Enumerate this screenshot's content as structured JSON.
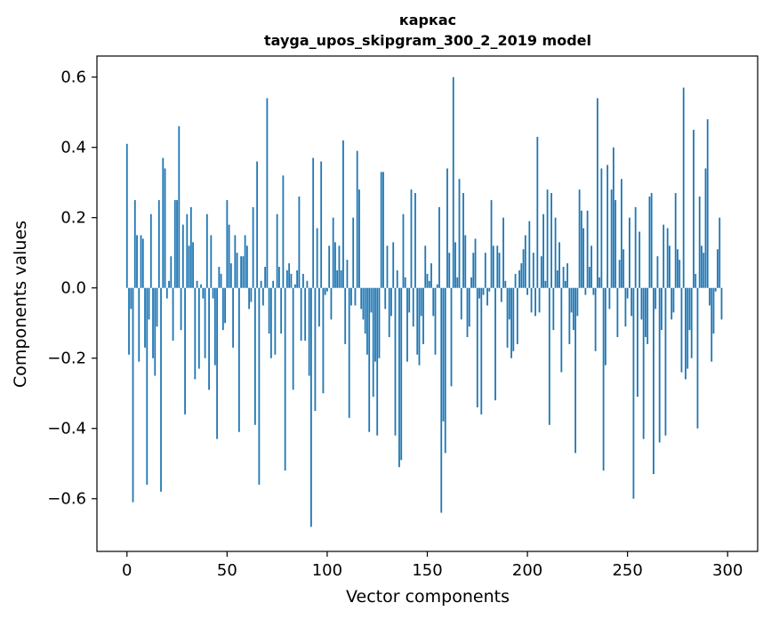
{
  "chart_data": {
    "type": "bar",
    "title_line1": "каркас",
    "title_line2": "tayga_upos_skipgram_300_2_2019 model",
    "xlabel": "Vector components",
    "ylabel": "Components values",
    "xlim": [
      -15,
      315
    ],
    "ylim": [
      -0.75,
      0.66
    ],
    "xticks": [
      0,
      50,
      100,
      150,
      200,
      250,
      300
    ],
    "xtick_labels": [
      "0",
      "50",
      "100",
      "150",
      "200",
      "250",
      "300"
    ],
    "yticks": [
      -0.6,
      -0.4,
      -0.2,
      0.0,
      0.2,
      0.4,
      0.6
    ],
    "ytick_labels": [
      "−0.6",
      "−0.4",
      "−0.2",
      "0.0",
      "0.2",
      "0.4",
      "0.6"
    ],
    "bar_color": "#1f77b4",
    "grid": false,
    "legend": "none",
    "values": [
      0.41,
      -0.19,
      -0.06,
      -0.61,
      0.25,
      0.15,
      -0.21,
      0.15,
      0.14,
      -0.17,
      -0.56,
      -0.09,
      0.21,
      -0.2,
      -0.25,
      -0.11,
      0.25,
      -0.58,
      0.37,
      0.34,
      -0.03,
      0.02,
      0.09,
      -0.15,
      0.25,
      0.25,
      0.46,
      -0.12,
      0.18,
      -0.36,
      0.21,
      0.12,
      0.23,
      0.13,
      -0.26,
      0.02,
      -0.23,
      0.01,
      -0.03,
      -0.2,
      0.21,
      -0.29,
      0.15,
      -0.03,
      -0.22,
      -0.43,
      0.06,
      0.04,
      -0.12,
      -0.1,
      0.25,
      0.18,
      0.07,
      -0.17,
      0.15,
      0.1,
      -0.41,
      0.09,
      0.09,
      0.15,
      0.12,
      -0.06,
      -0.04,
      0.23,
      -0.39,
      0.36,
      -0.56,
      0.02,
      -0.05,
      0.06,
      0.54,
      -0.13,
      -0.2,
      0.02,
      -0.19,
      0.21,
      0.06,
      -0.13,
      0.32,
      -0.52,
      0.05,
      0.07,
      0.04,
      -0.29,
      0.01,
      0.05,
      0.26,
      -0.15,
      0.04,
      -0.15,
      0.02,
      -0.25,
      -0.68,
      0.37,
      -0.35,
      0.17,
      -0.11,
      0.36,
      -0.3,
      -0.02,
      -0.01,
      0.12,
      -0.09,
      0.2,
      0.13,
      0.05,
      0.12,
      0.05,
      0.42,
      -0.16,
      0.08,
      -0.37,
      -0.05,
      0.2,
      -0.05,
      0.39,
      0.28,
      -0.06,
      -0.09,
      -0.13,
      -0.19,
      -0.41,
      -0.07,
      -0.31,
      -0.21,
      -0.42,
      -0.2,
      0.33,
      0.33,
      -0.06,
      0.12,
      -0.14,
      -0.08,
      0.13,
      -0.42,
      0.05,
      -0.51,
      -0.49,
      0.21,
      0.03,
      -0.21,
      -0.07,
      0.28,
      -0.11,
      0.27,
      -0.19,
      -0.22,
      -0.08,
      -0.16,
      0.12,
      0.04,
      0.02,
      0.07,
      -0.08,
      -0.19,
      0.01,
      0.23,
      -0.64,
      -0.38,
      -0.47,
      0.34,
      0.1,
      -0.28,
      0.6,
      0.13,
      0.03,
      0.31,
      -0.09,
      0.27,
      0.15,
      -0.14,
      -0.11,
      0.03,
      0.1,
      0.14,
      -0.34,
      -0.03,
      -0.36,
      -0.02,
      0.1,
      -0.05,
      -0.01,
      0.25,
      0.12,
      -0.32,
      0.12,
      0.1,
      -0.04,
      0.2,
      0.02,
      -0.17,
      -0.09,
      -0.2,
      -0.18,
      0.04,
      -0.16,
      0.05,
      0.07,
      0.11,
      0.15,
      -0.02,
      0.19,
      -0.07,
      0.1,
      -0.08,
      0.43,
      -0.07,
      0.09,
      0.21,
      0.02,
      0.28,
      -0.39,
      0.27,
      -0.12,
      0.2,
      0.05,
      0.13,
      -0.24,
      0.06,
      0.02,
      0.07,
      -0.16,
      -0.07,
      -0.12,
      -0.47,
      -0.08,
      0.28,
      0.22,
      0.17,
      -0.02,
      0.22,
      0.06,
      0.12,
      -0.02,
      -0.18,
      0.54,
      0.03,
      0.34,
      -0.52,
      -0.22,
      0.35,
      -0.06,
      0.28,
      0.4,
      0.25,
      -0.14,
      0.08,
      0.31,
      0.11,
      -0.11,
      -0.03,
      0.2,
      -0.08,
      -0.6,
      0.23,
      -0.31,
      0.16,
      -0.09,
      -0.43,
      -0.14,
      -0.16,
      0.26,
      0.27,
      -0.53,
      -0.06,
      0.09,
      -0.44,
      -0.12,
      0.18,
      -0.42,
      0.17,
      0.12,
      -0.09,
      -0.07,
      0.27,
      0.11,
      0.08,
      -0.24,
      0.57,
      -0.26,
      -0.23,
      -0.12,
      -0.2,
      0.45,
      0.04,
      -0.4,
      0.26,
      0.12,
      0.1,
      0.34,
      0.48,
      -0.05,
      -0.21,
      -0.13,
      -0.01,
      0.11,
      0.2,
      -0.09
    ]
  }
}
